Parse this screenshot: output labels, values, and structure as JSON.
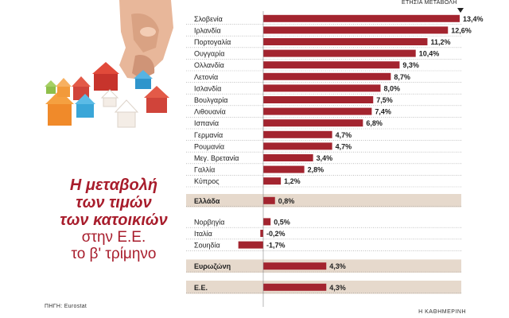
{
  "header": {
    "column_label": "ΕΤΗΣΙΑ ΜΕΤΑΒΟΛΗ"
  },
  "title": {
    "line1": "Η μεταβολή",
    "line2": "των τιμών",
    "line3": "των κατοικιών",
    "line4": "στην Ε.Ε.",
    "line5": "το β' τρίμηνο"
  },
  "footer": {
    "source": "ΠΗΓΗ: Eurostat",
    "brand": "Η ΚΑΘΗΜΕΡΙΝΗ"
  },
  "colors": {
    "bar": "#a3242f",
    "highlight_band": "#e6d9cc",
    "title": "#a81d2c"
  },
  "chart_data": {
    "type": "bar",
    "orientation": "horizontal",
    "unit": "%",
    "xlim": [
      -2,
      14
    ],
    "groups": [
      {
        "highlight": false,
        "rows": [
          {
            "label": "Σλοβενία",
            "value": 13.4,
            "text": "13,4%"
          },
          {
            "label": "Ιρλανδία",
            "value": 12.6,
            "text": "12,6%"
          },
          {
            "label": "Πορτογαλία",
            "value": 11.2,
            "text": "11,2%"
          },
          {
            "label": "Ουγγαρία",
            "value": 10.4,
            "text": "10,4%"
          },
          {
            "label": "Ολλανδία",
            "value": 9.3,
            "text": "9,3%"
          },
          {
            "label": "Λετονία",
            "value": 8.7,
            "text": "8,7%"
          },
          {
            "label": "Ισλανδία",
            "value": 8.0,
            "text": "8,0%"
          },
          {
            "label": "Βουλγαρία",
            "value": 7.5,
            "text": "7,5%"
          },
          {
            "label": "Λιθουανία",
            "value": 7.4,
            "text": "7,4%"
          },
          {
            "label": "Ισπανία",
            "value": 6.8,
            "text": "6,8%"
          },
          {
            "label": "Γερμανία",
            "value": 4.7,
            "text": "4,7%"
          },
          {
            "label": "Ρουμανία",
            "value": 4.7,
            "text": "4,7%"
          },
          {
            "label": "Μεγ. Βρετανία",
            "value": 3.4,
            "text": "3,4%"
          },
          {
            "label": "Γαλλία",
            "value": 2.8,
            "text": "2,8%"
          },
          {
            "label": "Κύπρος",
            "value": 1.2,
            "text": "1,2%"
          }
        ]
      },
      {
        "highlight": true,
        "rows": [
          {
            "label": "Ελλάδα",
            "value": 0.8,
            "text": "0,8%"
          }
        ]
      },
      {
        "highlight": false,
        "rows": [
          {
            "label": "Νορβηγία",
            "value": 0.5,
            "text": "0,5%"
          },
          {
            "label": "Ιταλία",
            "value": -0.2,
            "text": "-0,2%"
          },
          {
            "label": "Σουηδία",
            "value": -1.7,
            "text": "-1,7%"
          }
        ]
      },
      {
        "highlight": true,
        "rows": [
          {
            "label": "Ευρωζώνη",
            "value": 4.3,
            "text": "4,3%"
          }
        ]
      },
      {
        "highlight": true,
        "rows": [
          {
            "label": "Ε.Ε.",
            "value": 4.3,
            "text": "4,3%"
          }
        ]
      }
    ]
  }
}
